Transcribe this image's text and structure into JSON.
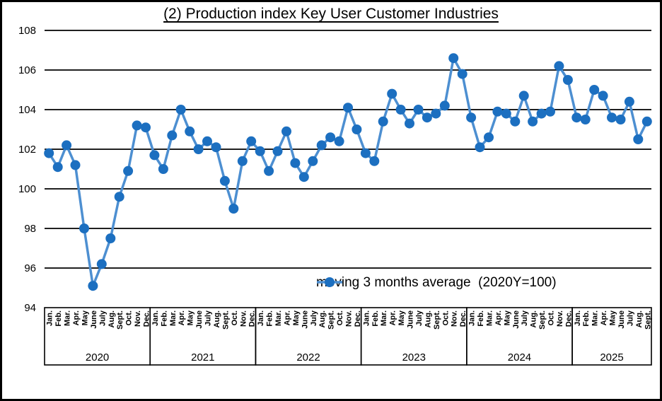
{
  "title": "(2) Production index Key User Customer Industries",
  "legend": {
    "label": "moving 3 months average  (2020Y=100)"
  },
  "chart_data": {
    "type": "line",
    "title": "(2) Production index Key User Customer Industries",
    "ylim": [
      94,
      108
    ],
    "ytick_step": 2,
    "ytick_labels": [
      "108",
      "106",
      "104",
      "102",
      "100",
      "98",
      "96",
      "94"
    ],
    "grid": true,
    "legend_position": "inside-bottom-center-right",
    "colors": {
      "line": "#4d8fd1",
      "marker": "#1c6fc0",
      "grid": "#000000",
      "text": "#000000"
    },
    "x_axis": {
      "month_labels": [
        "Jan.",
        "Feb.",
        "Mar.",
        "Apr.",
        "May",
        "June",
        "July",
        "Aug.",
        "Sept.",
        "Oct.",
        "Nov.",
        "Dec."
      ],
      "years": [
        {
          "label": "2020",
          "months": 12
        },
        {
          "label": "2021",
          "months": 12
        },
        {
          "label": "2022",
          "months": 12
        },
        {
          "label": "2023",
          "months": 12
        },
        {
          "label": "2024",
          "months": 12
        },
        {
          "label": "2025",
          "months": 9
        }
      ]
    },
    "series": [
      {
        "name": "moving 3 months average  (2020Y=100)",
        "values": [
          101.8,
          101.1,
          102.2,
          101.2,
          98.0,
          95.1,
          96.2,
          97.5,
          99.6,
          100.9,
          103.2,
          103.1,
          101.7,
          101.0,
          102.7,
          104.0,
          102.9,
          102.0,
          102.4,
          102.1,
          100.4,
          99.0,
          101.4,
          102.4,
          101.9,
          100.9,
          101.9,
          102.9,
          101.3,
          100.6,
          101.4,
          102.2,
          102.6,
          102.4,
          104.1,
          103.0,
          101.8,
          101.4,
          103.4,
          104.8,
          104.0,
          103.3,
          104.0,
          103.6,
          103.8,
          104.2,
          106.6,
          105.8,
          103.6,
          102.1,
          102.6,
          103.9,
          103.8,
          103.4,
          104.7,
          103.4,
          103.8,
          103.9,
          106.2,
          105.5,
          103.6,
          103.5,
          105.0,
          104.7,
          103.6,
          103.5,
          104.4,
          102.5,
          103.4
        ]
      }
    ]
  }
}
